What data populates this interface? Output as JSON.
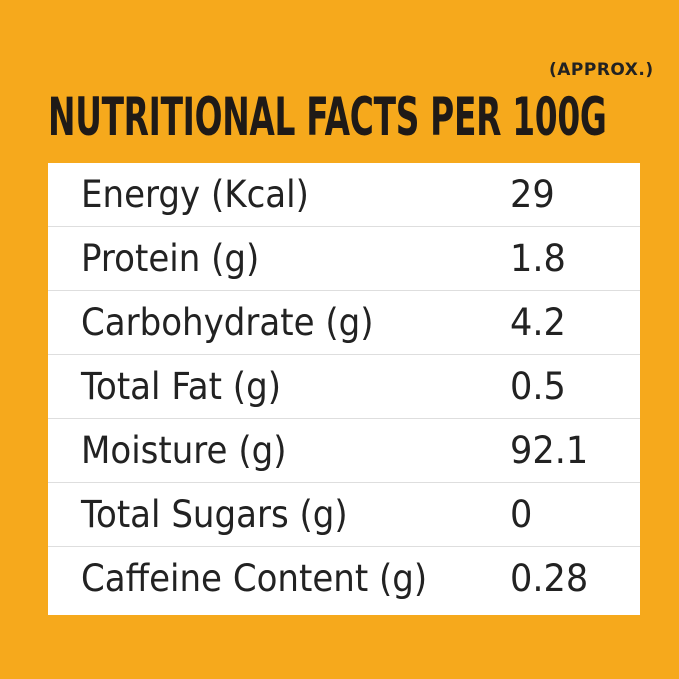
{
  "header": {
    "note": "(APPROX.)",
    "title": "NUTRITIONAL FACTS PER 100G"
  },
  "nutrition": {
    "rows": [
      {
        "label": "Energy (Kcal)",
        "value": "29"
      },
      {
        "label": "Protein (g)",
        "value": "1.8"
      },
      {
        "label": "Carbohydrate (g)",
        "value": "4.2"
      },
      {
        "label": "Total Fat (g)",
        "value": "0.5"
      },
      {
        "label": "Moisture (g)",
        "value": "92.1"
      },
      {
        "label": "Total Sugars (g)",
        "value": "0"
      },
      {
        "label": "Caffeine Content (g)",
        "value": "0.28"
      }
    ]
  },
  "colors": {
    "background": "#f6a91c",
    "table": "#ffffff",
    "text": "#222222"
  }
}
